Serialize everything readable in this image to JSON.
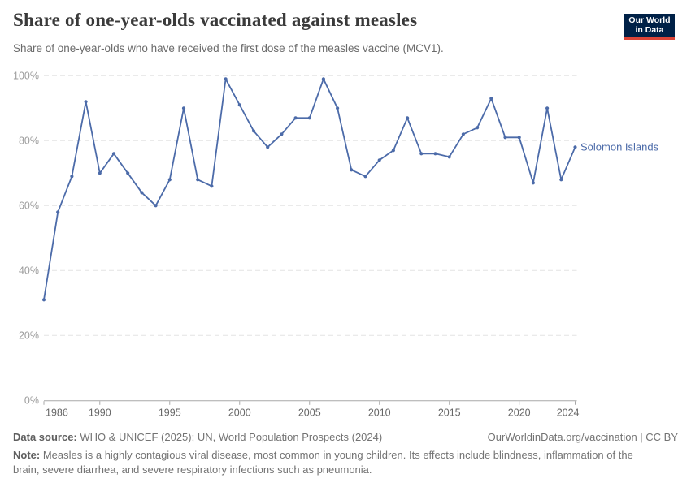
{
  "header": {
    "title": "Share of one-year-olds vaccinated against measles",
    "subtitle": "Share of one-year-olds who have received the first dose of the measles vaccine (MCV1).",
    "logo": {
      "line1": "Our World",
      "line2": "in Data",
      "bg_color": "#002147",
      "accent_color": "#dc4437"
    }
  },
  "chart_data": {
    "type": "line",
    "title": "Share of one-year-olds vaccinated against measles",
    "xlabel": "",
    "ylabel": "",
    "unit": "%",
    "entity_label": "Solomon Islands",
    "line_color": "#4c6ba9",
    "grid": true,
    "legend_position": "line-end",
    "xlim": [
      1986,
      2024
    ],
    "ylim": [
      0,
      100
    ],
    "yticks": [
      0,
      20,
      40,
      60,
      80,
      100
    ],
    "ytick_labels": [
      "0%",
      "20%",
      "40%",
      "60%",
      "80%",
      "100%"
    ],
    "xticks": [
      1986,
      1990,
      1995,
      2000,
      2005,
      2010,
      2015,
      2020,
      2024
    ],
    "x": [
      1986,
      1987,
      1988,
      1989,
      1990,
      1991,
      1992,
      1993,
      1994,
      1995,
      1996,
      1997,
      1998,
      1999,
      2000,
      2001,
      2002,
      2003,
      2004,
      2005,
      2006,
      2007,
      2008,
      2009,
      2010,
      2011,
      2012,
      2013,
      2014,
      2015,
      2016,
      2017,
      2018,
      2019,
      2020,
      2021,
      2022,
      2023,
      2024
    ],
    "series": [
      {
        "name": "Solomon Islands",
        "values": [
          31,
          58,
          69,
          92,
          70,
          76,
          70,
          64,
          60,
          68,
          90,
          68,
          66,
          99,
          91,
          83,
          78,
          82,
          87,
          87,
          99,
          90,
          71,
          69,
          74,
          77,
          87,
          76,
          76,
          75,
          82,
          84,
          93,
          81,
          81,
          67,
          90,
          68,
          78
        ]
      }
    ]
  },
  "footer": {
    "datasource_label": "Data source:",
    "datasource_text": " WHO & UNICEF (2025); UN, World Population Prospects (2024)",
    "rights_text": "OurWorldinData.org/vaccination | CC BY",
    "note_label": "Note:",
    "note_text": " Measles is a highly contagious viral disease, most common in young children. Its effects include blindness, inflammation of the brain, severe diarrhea, and severe respiratory infections such as pneumonia."
  }
}
